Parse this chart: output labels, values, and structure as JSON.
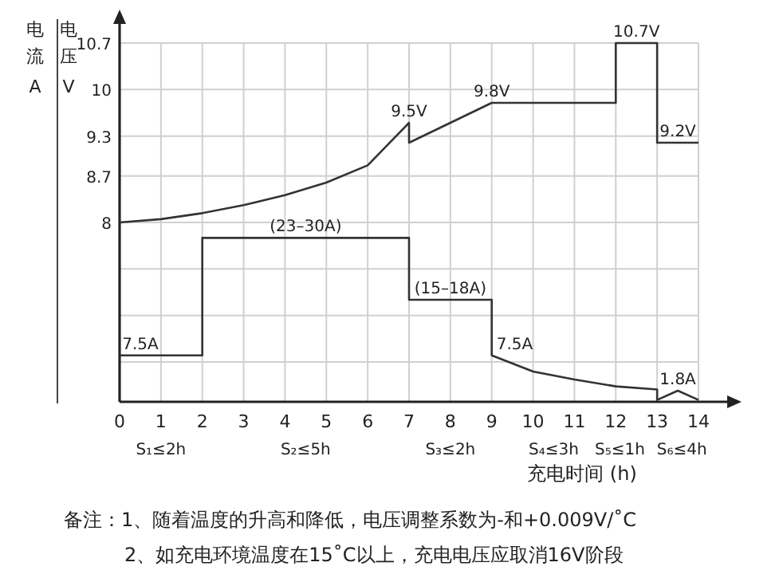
{
  "chart_data": {
    "type": "line",
    "xlabel": "充电时间 (h)",
    "ylabel": "电压 V",
    "y2label": "电流 A",
    "xlim": [
      0,
      14
    ],
    "xticks": [
      0,
      1,
      2,
      3,
      4,
      5,
      6,
      7,
      8,
      9,
      10,
      11,
      12,
      13,
      14
    ],
    "ylim": [
      5.3,
      10.7
    ],
    "yticks": [
      8,
      8.7,
      9.3,
      10,
      10.7
    ],
    "y2lim": [
      0,
      58
    ],
    "grid": true,
    "marker": "none",
    "line_style": "solid",
    "series": [
      {
        "color": "#333333",
        "x": [
          0,
          1,
          2,
          3,
          4,
          5,
          6,
          7,
          7,
          8,
          9,
          12,
          12,
          12.5,
          13,
          13,
          13.5,
          14
        ],
        "values": [
          8,
          8.05,
          8.14,
          8.26,
          8.41,
          8.6,
          8.86,
          9.5,
          9.2,
          9.5,
          9.8,
          9.8,
          10.7,
          10.7,
          10.7,
          9.2,
          9.2,
          9.2
        ],
        "value_labels": [
          null,
          null,
          null,
          null,
          null,
          null,
          null,
          "9.5V",
          null,
          null,
          "9.8V",
          null,
          null,
          "10.7V",
          null,
          null,
          "9.2V",
          null
        ]
      },
      {
        "color": "#333333",
        "axis": "y2",
        "x": [
          0,
          0.5,
          2,
          2,
          4.5,
          7,
          7,
          8,
          9,
          9,
          10,
          11,
          12,
          13,
          13,
          13.5,
          14
        ],
        "values": [
          7.5,
          7.5,
          7.5,
          26.5,
          26.5,
          26.5,
          16.5,
          16.5,
          16.5,
          7.5,
          4.9,
          3.6,
          2.5,
          2.0,
          0.3,
          1.8,
          0.3
        ],
        "value_labels": [
          null,
          "7.5A",
          null,
          null,
          "(23–30A)",
          null,
          null,
          "(15–18A)",
          null,
          "7.5A",
          null,
          null,
          null,
          null,
          null,
          "1.8A",
          null
        ]
      }
    ],
    "annotations": [
      "S₁≤2h",
      "S₂≤5h",
      "S₃≤2h",
      "S₄≤3h",
      "S₅≤1h",
      "S₆≤4h",
      "备注：1、随着温度的升高和降低，电压调整系数为-和+0.009V/˚C",
      "2、如充电环境温度在15˚C以上，充电电压应取消16V阶段"
    ]
  }
}
